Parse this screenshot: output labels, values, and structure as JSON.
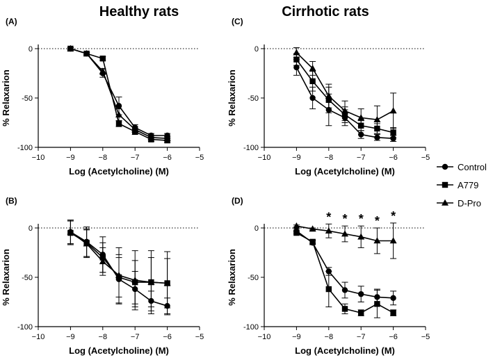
{
  "titles": {
    "left": "Healthy rats",
    "right": "Cirrhotic rats"
  },
  "legend": [
    {
      "name": "Control",
      "marker": "circle"
    },
    {
      "name": "A779",
      "marker": "square"
    },
    {
      "name": "D-Pro",
      "marker": "triangle"
    }
  ],
  "chart_data": [
    {
      "type": "line",
      "panel_label": "(A)",
      "xlabel": "Log (Acetylcholine) (M)",
      "ylabel": "% Relaxarion",
      "xlim": [
        -10,
        -5
      ],
      "ylim": [
        -100,
        0
      ],
      "xticks": [
        -10,
        -9,
        -8,
        -7,
        -6,
        -5
      ],
      "xtick_labels": [
        "−10",
        "−9",
        "−8",
        "−7",
        "−6",
        "−5"
      ],
      "yticks": [
        0,
        -50,
        -100
      ],
      "ytick_labels": [
        "0",
        "-50",
        "-100"
      ],
      "reference_line": 0,
      "x": [
        -9,
        -8.5,
        -8,
        -7.5,
        -7,
        -6.5,
        -6
      ],
      "series": [
        {
          "name": "Control",
          "marker": "circle",
          "values": [
            0,
            -5,
            -25,
            -58,
            -80,
            -88,
            -88
          ],
          "errors": [
            1,
            1,
            4,
            9,
            3,
            2,
            2
          ]
        },
        {
          "name": "A779",
          "marker": "square",
          "values": [
            0,
            -5,
            -10,
            -76,
            -84,
            -92,
            -93
          ],
          "errors": [
            1,
            1,
            2,
            3,
            3,
            2,
            2
          ]
        },
        {
          "name": "D-Pro",
          "marker": "triangle",
          "values": [
            0,
            -5,
            -23,
            -67,
            -82,
            -90,
            -91
          ],
          "errors": [
            1,
            1,
            3,
            6,
            3,
            2,
            2
          ]
        }
      ]
    },
    {
      "type": "line",
      "panel_label": "(C)",
      "xlabel": "Log (Acetylcholine) (M)",
      "ylabel": "% Relaxarion",
      "xlim": [
        -10,
        -5
      ],
      "ylim": [
        -100,
        0
      ],
      "xticks": [
        -10,
        -9,
        -8,
        -7,
        -6,
        -5
      ],
      "xtick_labels": [
        "−10",
        "−9",
        "−8",
        "−7",
        "−6",
        "−5"
      ],
      "yticks": [
        0,
        -50,
        -100
      ],
      "ytick_labels": [
        "0",
        "-50",
        "-100"
      ],
      "reference_line": 0,
      "x": [
        -9,
        -8.5,
        -8,
        -7.5,
        -7,
        -6.5,
        -6
      ],
      "series": [
        {
          "name": "Control",
          "marker": "circle",
          "values": [
            -19,
            -50,
            -62,
            -70,
            -87,
            -90,
            -91
          ],
          "errors": [
            8,
            11,
            16,
            8,
            4,
            3,
            3
          ]
        },
        {
          "name": "A779",
          "marker": "square",
          "values": [
            -11,
            -33,
            -52,
            -67,
            -78,
            -81,
            -85
          ],
          "errors": [
            6,
            10,
            13,
            8,
            5,
            5,
            5
          ]
        },
        {
          "name": "D-Pro",
          "marker": "triangle",
          "values": [
            -4,
            -20,
            -48,
            -63,
            -70,
            -72,
            -63
          ],
          "errors": [
            5,
            7,
            12,
            10,
            9,
            14,
            18
          ]
        }
      ]
    },
    {
      "type": "line",
      "panel_label": "(B)",
      "xlabel": "Log (Acetylcholine) (M)",
      "ylabel": "% Relaxarion",
      "xlim": [
        -10,
        -5
      ],
      "ylim": [
        -100,
        0
      ],
      "xticks": [
        -10,
        -9,
        -8,
        -7,
        -6,
        -5
      ],
      "xtick_labels": [
        "−10",
        "−9",
        "−8",
        "−7",
        "−6",
        "−5"
      ],
      "yticks": [
        0,
        -50,
        -100
      ],
      "ytick_labels": [
        "0",
        "-50",
        "-100"
      ],
      "reference_line": 0,
      "x": [
        -9,
        -8.5,
        -8,
        -7.5,
        -7,
        -6.5,
        -6
      ],
      "series": [
        {
          "name": "Control",
          "marker": "circle",
          "values": [
            -4,
            -14,
            -27,
            -52,
            -62,
            -74,
            -79
          ],
          "errors": [
            12,
            15,
            18,
            25,
            18,
            10,
            8
          ]
        },
        {
          "name": "A779",
          "marker": "square",
          "values": [
            -5,
            -15,
            -30,
            -50,
            -55,
            -55,
            -56
          ],
          "errors": [
            12,
            14,
            15,
            20,
            22,
            25,
            25
          ]
        },
        {
          "name": "D-Pro",
          "marker": "triangle",
          "values": [
            -4,
            -16,
            -34,
            -48,
            -53,
            -55,
            -56
          ],
          "errors": [
            12,
            14,
            14,
            28,
            30,
            32,
            32
          ]
        }
      ]
    },
    {
      "type": "line",
      "panel_label": "(D)",
      "xlabel": "Log (Acetylcholine) (M)",
      "ylabel": "% Relaxarion",
      "xlim": [
        -10,
        -5
      ],
      "ylim": [
        -100,
        0
      ],
      "xticks": [
        -10,
        -9,
        -8,
        -7,
        -6,
        -5
      ],
      "xtick_labels": [
        "−10",
        "−9",
        "−8",
        "−7",
        "−6",
        "−5"
      ],
      "yticks": [
        0,
        -50,
        -100
      ],
      "ytick_labels": [
        "0",
        "-50",
        "-100"
      ],
      "reference_line": 0,
      "x": [
        -9,
        -8.5,
        -8,
        -7.5,
        -7,
        -6.5,
        -6
      ],
      "significance_marker": "*",
      "significance_x": [
        -8,
        -7.5,
        -7,
        -6.5,
        -6
      ],
      "series": [
        {
          "name": "Control",
          "marker": "circle",
          "values": [
            -3,
            -15,
            -44,
            -63,
            -67,
            -70,
            -71
          ],
          "errors": [
            1,
            2,
            4,
            8,
            8,
            8,
            7
          ]
        },
        {
          "name": "A779",
          "marker": "square",
          "values": [
            -5,
            -14,
            -62,
            -82,
            -86,
            -77,
            -86
          ],
          "errors": [
            1,
            2,
            18,
            5,
            3,
            14,
            3
          ]
        },
        {
          "name": "D-Pro",
          "marker": "triangle",
          "values": [
            2,
            -1,
            -3,
            -6,
            -9,
            -13,
            -13
          ],
          "errors": [
            1,
            1,
            7,
            8,
            11,
            13,
            18
          ]
        }
      ]
    }
  ]
}
